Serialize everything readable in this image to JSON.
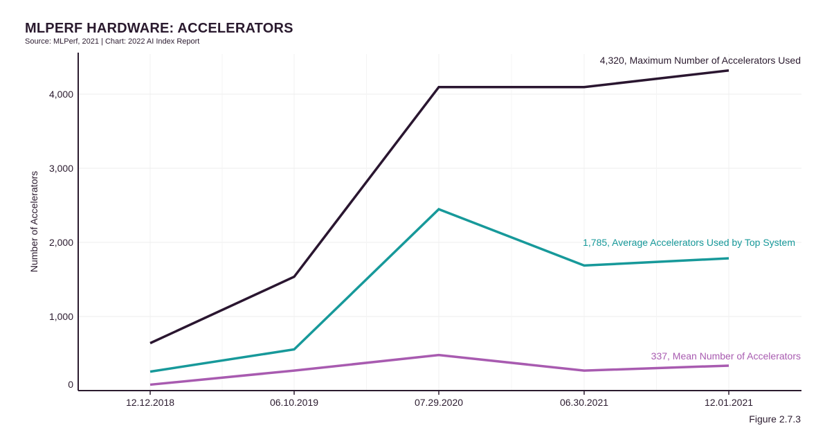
{
  "header": {
    "title": "MLPERF HARDWARE: ACCELERATORS",
    "subtitle": "Source: MLPerf, 2021 | Chart: 2022 AI Index Report"
  },
  "footer": {
    "figure": "Figure 2.7.3"
  },
  "chart_data": {
    "type": "line",
    "title": "MLPERF HARDWARE: ACCELERATORS",
    "xlabel": "",
    "ylabel": "Number of Accelerators",
    "categories": [
      "12.12.2018",
      "06.10.2019",
      "07.29.2020",
      "06.30.2021",
      "12.01.2021"
    ],
    "ylim": [
      0,
      4500
    ],
    "yticks": [
      {
        "value": 0,
        "label": "0"
      },
      {
        "value": 1000,
        "label": "1,000"
      },
      {
        "value": 2000,
        "label": "2,000"
      },
      {
        "value": 3000,
        "label": "3,000"
      },
      {
        "value": 4000,
        "label": "4,000"
      }
    ],
    "grid": true,
    "legend": "none",
    "series": [
      {
        "key": "max",
        "values": [
          640,
          1536,
          4096,
          4096,
          4320
        ],
        "color": "#2a1630",
        "label": "4,320, Maximum Number of Accelerators Used"
      },
      {
        "key": "avg",
        "values": [
          256,
          556,
          2448,
          1688,
          1785
        ],
        "color": "#17999a",
        "label": "1,785, Average Accelerators Used by Top System"
      },
      {
        "key": "mean",
        "values": [
          80,
          270,
          480,
          270,
          337
        ],
        "color": "#a85bb0",
        "label": "337, Mean Number of Accelerators"
      }
    ]
  }
}
